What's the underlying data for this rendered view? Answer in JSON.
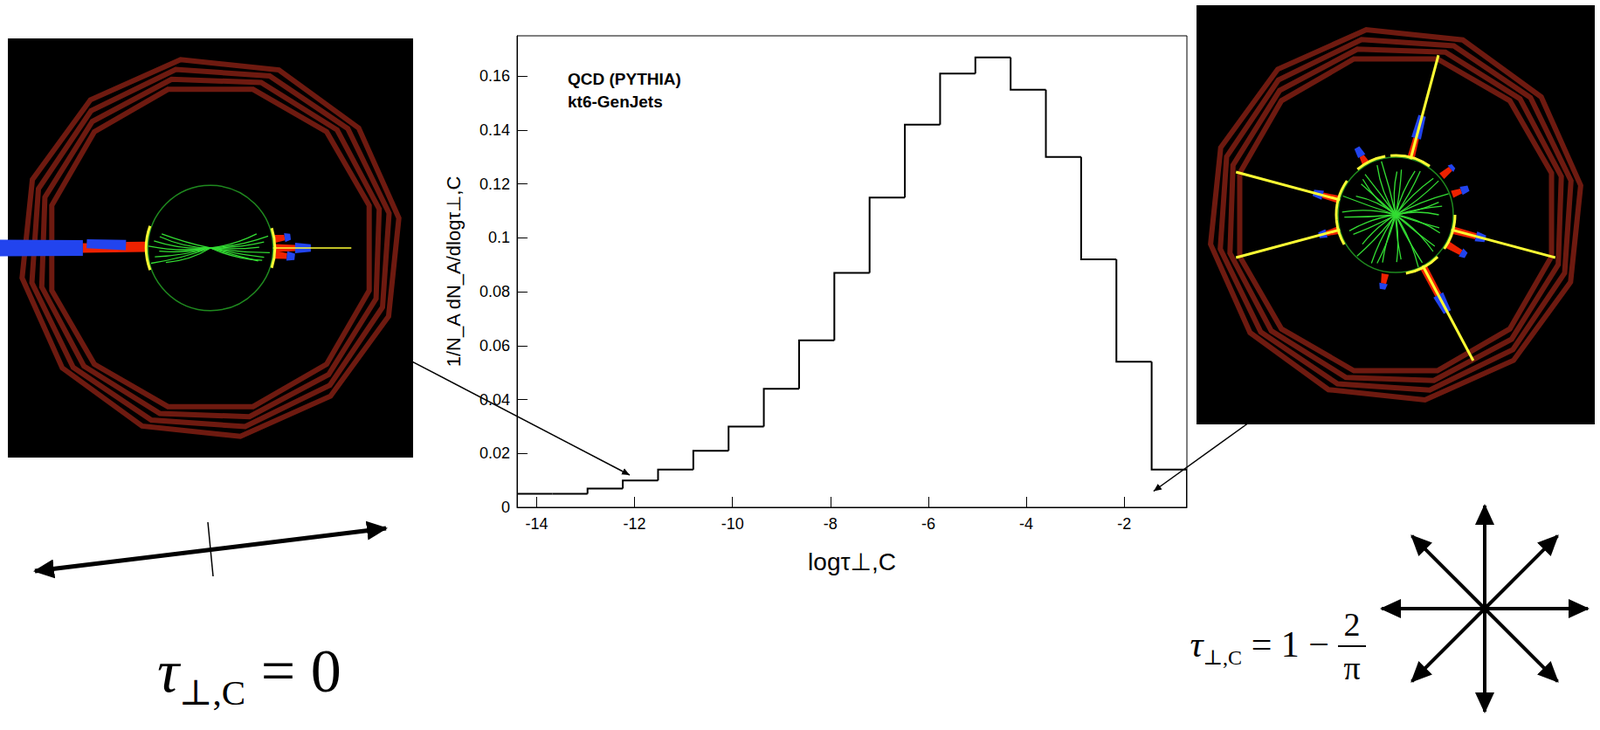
{
  "chart_data": {
    "type": "histogram",
    "title": "QCD (PYTHIA)",
    "subtitle": "kt6-GenJets",
    "x_label": "logτ⊥,C",
    "y_label": "1/N_A dN_A/dlogτ⊥,C",
    "bins": [
      -14.4,
      -13.68,
      -12.96,
      -12.24,
      -11.52,
      -10.8,
      -10.08,
      -9.36,
      -8.64,
      -7.92,
      -7.2,
      -6.48,
      -5.76,
      -5.04,
      -4.32,
      -3.6,
      -2.88,
      -2.16,
      -1.44,
      -0.72
    ],
    "counts": [
      0.005,
      0.005,
      0.007,
      0.01,
      0.014,
      0.021,
      0.03,
      0.044,
      0.062,
      0.087,
      0.115,
      0.142,
      0.161,
      0.167,
      0.155,
      0.13,
      0.092,
      0.054,
      0.014
    ],
    "color": "#000000",
    "xlim": [
      -14.4,
      -0.72
    ],
    "xticks": [
      -14,
      -12,
      -10,
      -8,
      -6,
      -4,
      -2
    ],
    "ylim": [
      0,
      0.175
    ],
    "yticks": [
      0,
      0.02,
      0.04,
      0.06,
      0.08,
      0.1,
      0.12,
      0.14,
      0.16
    ],
    "grid": false,
    "annotations": [
      {
        "symbol": "τ",
        "subscript": "⊥,C",
        "rhs": "= 0",
        "x": -12.1,
        "y": 0.012
      },
      {
        "symbol": "τ",
        "subscript": "⊥,C",
        "rhs": "= 1 −",
        "numerator": "2",
        "denominator": "π",
        "x": -1.4,
        "y": 0.006
      }
    ]
  }
}
